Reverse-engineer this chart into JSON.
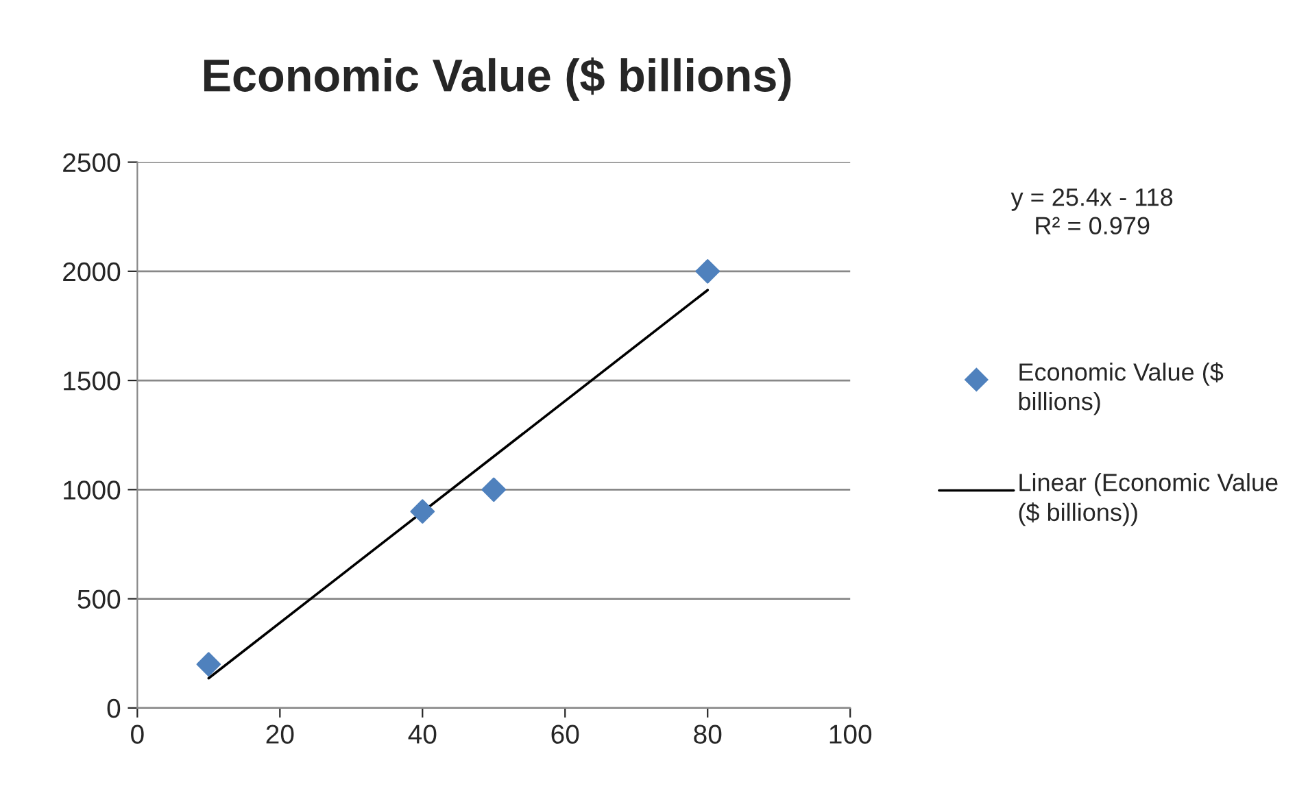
{
  "chart_data": {
    "type": "scatter",
    "title": "Economic Value ($ billions)",
    "series": [
      {
        "name": "Economic Value ($ billions)",
        "color": "#4f81bd",
        "marker": "diamond",
        "x": [
          10,
          40,
          50,
          80
        ],
        "values": [
          200,
          900,
          1000,
          2000
        ]
      },
      {
        "name": "Linear (Economic Value ($ billions))",
        "type": "line",
        "color": "#000000",
        "marker": "none",
        "line_style": "solid",
        "x": [
          10,
          80
        ],
        "values": [
          136,
          1914
        ]
      }
    ],
    "xlim": [
      0,
      100
    ],
    "xticks": [
      0,
      20,
      40,
      60,
      80,
      100
    ],
    "ylim": [
      0,
      2500
    ],
    "yticks": [
      0,
      500,
      1000,
      1500,
      2000,
      2500
    ],
    "grid": "y",
    "legend": "right",
    "annotations": [
      "y = 25.4x - 118\nR² = 0.979"
    ]
  }
}
